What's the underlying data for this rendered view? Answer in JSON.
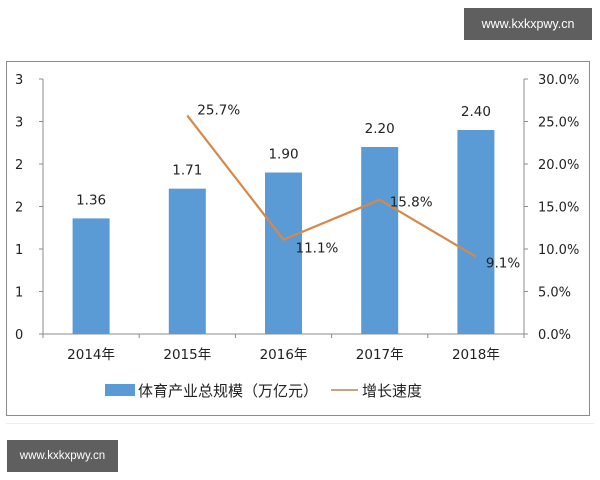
{
  "watermarks": {
    "top": "www.kxkxpwy.cn",
    "bottom": "www.kxkxpwy.cn"
  },
  "colors": {
    "bar": "#5b9bd5",
    "line": "#d6884a",
    "axis": "#8c8c8c",
    "watermark_bg": "#5f5f5f"
  },
  "chart_data": {
    "type": "bar",
    "title": "",
    "categories": [
      "2014年",
      "2015年",
      "2016年",
      "2017年",
      "2018年"
    ],
    "series": [
      {
        "name": "体育产业总规模（万亿元）",
        "type": "bar",
        "axis": "left",
        "values": [
          1.36,
          1.71,
          1.9,
          2.2,
          2.4
        ],
        "labels": [
          "1.36",
          "1.71",
          "1.90",
          "2.20",
          "2.40"
        ]
      },
      {
        "name": "增长速度",
        "type": "line",
        "axis": "right",
        "values": [
          null,
          25.7,
          11.1,
          15.8,
          9.1
        ],
        "labels": [
          "",
          "25.7%",
          "11.1%",
          "15.8%",
          "9.1%"
        ]
      }
    ],
    "left_axis": {
      "ticks": [
        "0",
        "1",
        "1",
        "2",
        "2",
        "3",
        "3"
      ],
      "ylim": [
        0,
        3
      ]
    },
    "right_axis": {
      "ticks": [
        "0.0%",
        "5.0%",
        "10.0%",
        "15.0%",
        "20.0%",
        "25.0%",
        "30.0%"
      ],
      "ylim": [
        0,
        30
      ]
    },
    "xlabel": "",
    "ylabel": "",
    "grid": false,
    "legend_position": "bottom"
  },
  "legend": {
    "bar_label": "体育产业总规模（万亿元）",
    "line_label": "增长速度"
  }
}
